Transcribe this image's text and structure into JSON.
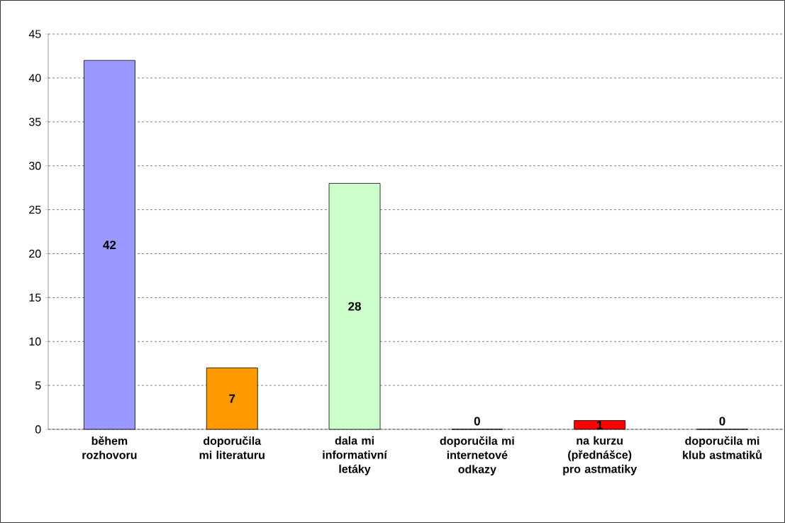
{
  "chart_data": {
    "type": "bar",
    "categories": [
      "během rozhovoru",
      "doporučila mi literaturu",
      "dala mi informativní letáky",
      "doporučila mi internetové odkazy",
      "na kurzu (přednášce) pro astmatiky",
      "doporučila mi klub astmatiků"
    ],
    "values": [
      42,
      7,
      28,
      0,
      1,
      0
    ],
    "colors": [
      "#9999ff",
      "#ff9900",
      "#ccffcc",
      "#00ccff",
      "#ff0000",
      "#993366"
    ],
    "ylim": [
      0,
      45
    ],
    "yticks": [
      0,
      5,
      10,
      15,
      20,
      25,
      30,
      35,
      40,
      45
    ],
    "grid": "y",
    "data_labels": true
  }
}
